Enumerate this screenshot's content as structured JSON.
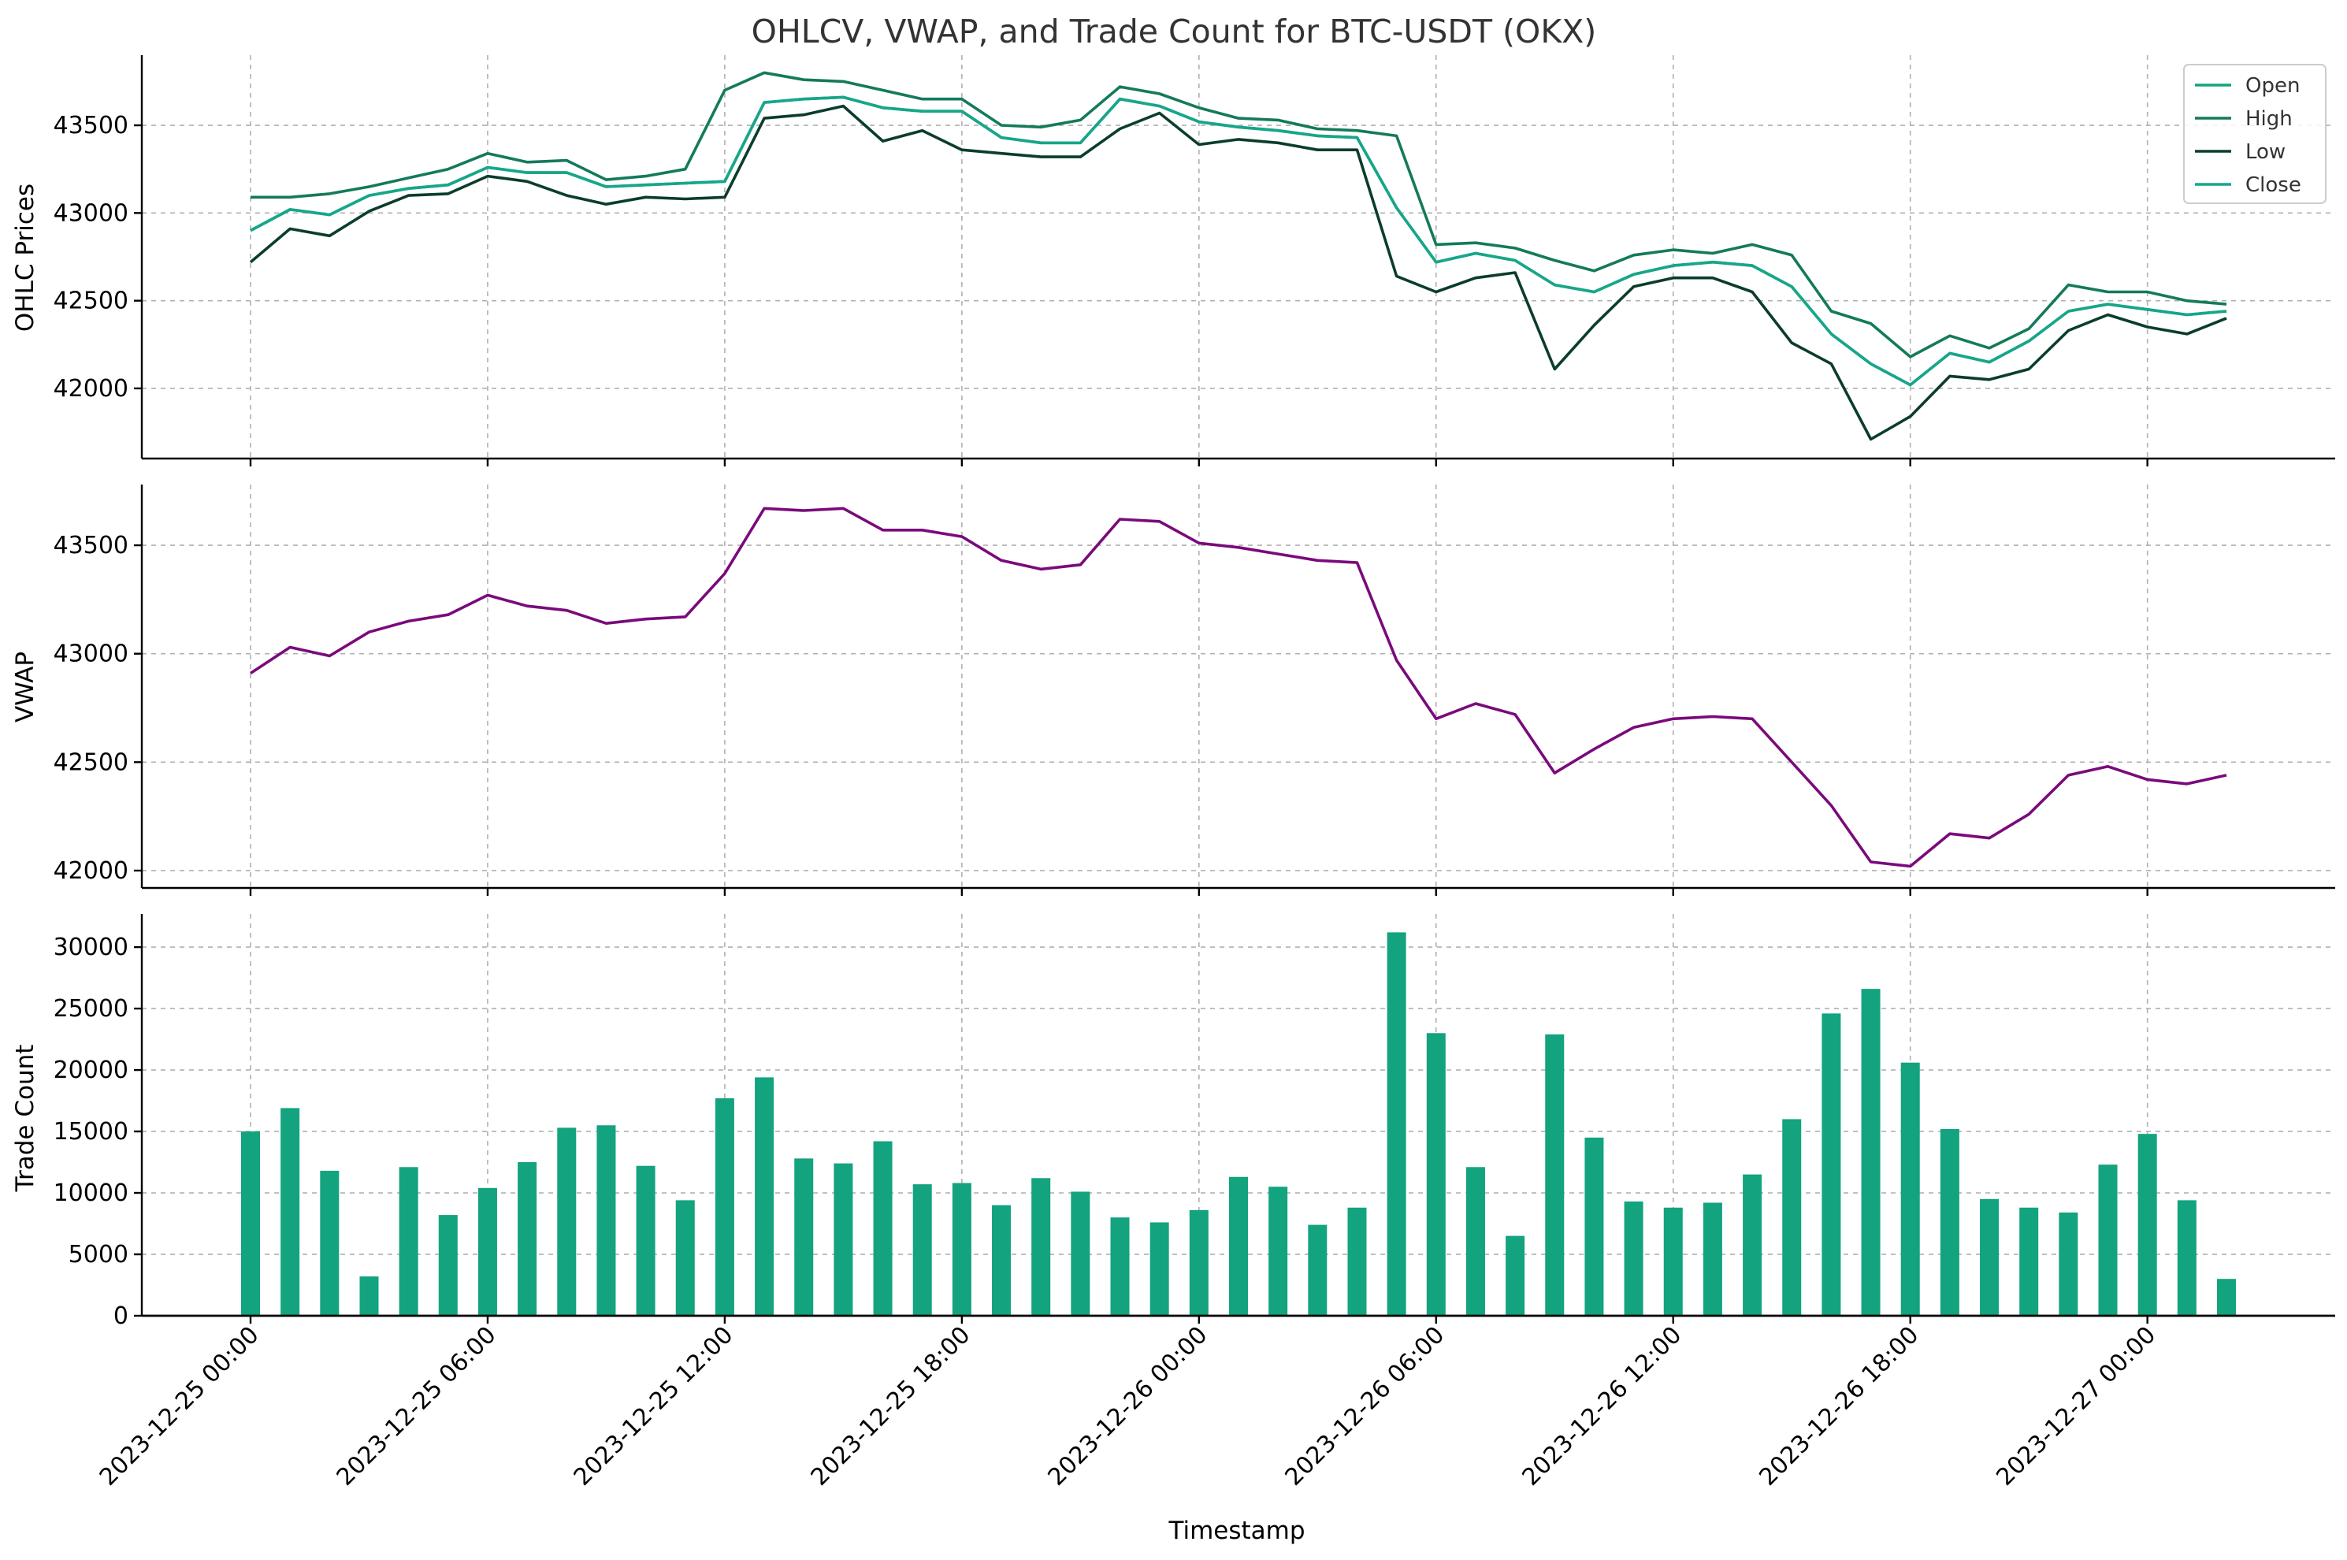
{
  "chart_data": [
    {
      "type": "line",
      "title": "OHLCV, VWAP, and Trade Count for BTC-USDT (OKX)",
      "xlabel": "",
      "ylabel": "OHLC Prices",
      "x_start": "2023-12-25 00:00",
      "x_interval_hours": 1,
      "ylim": [
        41600,
        43900
      ],
      "yticks": [
        42000,
        42500,
        43000,
        43500
      ],
      "legend": "top-right",
      "grid": true,
      "series": [
        {
          "name": "Open",
          "color": "#13a37e",
          "values": [
            42900,
            43020,
            42990,
            43100,
            43140,
            43160,
            43260,
            43230,
            43230,
            43150,
            43160,
            43170,
            43180,
            43630,
            43650,
            43660,
            43600,
            43580,
            43580,
            43430,
            43400,
            43400,
            43650,
            43610,
            43520,
            43490,
            43470,
            43440,
            43430,
            43030,
            42720,
            42770,
            42730,
            42590,
            42550,
            42650,
            42700,
            42720,
            42700,
            42580,
            42310,
            42140,
            42020,
            42200,
            42150,
            42270,
            42440,
            42480,
            42450,
            42420,
            42440
          ]
        },
        {
          "name": "High",
          "color": "#147a5c",
          "values": [
            43090,
            43090,
            43110,
            43150,
            43200,
            43250,
            43340,
            43290,
            43300,
            43190,
            43210,
            43250,
            43700,
            43800,
            43760,
            43750,
            43700,
            43650,
            43650,
            43500,
            43490,
            43530,
            43720,
            43680,
            43600,
            43540,
            43530,
            43480,
            43470,
            43440,
            42820,
            42830,
            42800,
            42730,
            42670,
            42760,
            42790,
            42770,
            42820,
            42760,
            42440,
            42370,
            42180,
            42300,
            42230,
            42340,
            42590,
            42550,
            42550,
            42500,
            42480
          ]
        },
        {
          "name": "Low",
          "color": "#0b3d2c",
          "values": [
            42720,
            42910,
            42870,
            43010,
            43100,
            43110,
            43210,
            43180,
            43100,
            43050,
            43090,
            43080,
            43090,
            43540,
            43560,
            43610,
            43410,
            43470,
            43360,
            43340,
            43320,
            43320,
            43480,
            43570,
            43390,
            43420,
            43400,
            43360,
            43360,
            42640,
            42550,
            42630,
            42660,
            42110,
            42360,
            42580,
            42630,
            42630,
            42550,
            42260,
            42140,
            41710,
            41840,
            42070,
            42050,
            42110,
            42330,
            42420,
            42350,
            42310,
            42400
          ]
        },
        {
          "name": "Close",
          "color": "#17a689",
          "values": [
            42900,
            43020,
            42990,
            43100,
            43140,
            43160,
            43260,
            43230,
            43230,
            43150,
            43160,
            43170,
            43180,
            43630,
            43650,
            43660,
            43600,
            43580,
            43580,
            43430,
            43400,
            43400,
            43650,
            43610,
            43520,
            43490,
            43470,
            43440,
            43430,
            43030,
            42720,
            42770,
            42730,
            42590,
            42550,
            42650,
            42700,
            42720,
            42700,
            42580,
            42310,
            42140,
            42020,
            42200,
            42150,
            42270,
            42440,
            42480,
            42450,
            42420,
            42440
          ]
        }
      ]
    },
    {
      "type": "line",
      "title": "",
      "xlabel": "",
      "ylabel": "VWAP",
      "x_start": "2023-12-25 00:00",
      "x_interval_hours": 1,
      "ylim": [
        41920,
        43780
      ],
      "yticks": [
        42000,
        42500,
        43000,
        43500
      ],
      "grid": true,
      "series": [
        {
          "name": "",
          "color": "#7a0a7c",
          "values": [
            42910,
            43030,
            42990,
            43100,
            43150,
            43180,
            43270,
            43220,
            43200,
            43140,
            43160,
            43170,
            43370,
            43670,
            43660,
            43670,
            43570,
            43570,
            43540,
            43430,
            43390,
            43410,
            43620,
            43610,
            43510,
            43490,
            43460,
            43430,
            43420,
            42970,
            42700,
            42770,
            42720,
            42450,
            42560,
            42660,
            42700,
            42710,
            42700,
            42500,
            42300,
            42040,
            42020,
            42170,
            42150,
            42260,
            42440,
            42480,
            42420,
            42400,
            42440
          ]
        }
      ]
    },
    {
      "type": "bar",
      "title": "",
      "xlabel": "Timestamp",
      "ylabel": "Trade Count",
      "x_start": "2023-12-25 00:00",
      "x_interval_hours": 1,
      "ylim": [
        0,
        32700
      ],
      "yticks": [
        0,
        5000,
        10000,
        15000,
        20000,
        25000,
        30000
      ],
      "grid": true,
      "color": "#13a37e",
      "values": [
        15000,
        16900,
        11800,
        3200,
        12100,
        8200,
        10400,
        12500,
        15300,
        15500,
        12200,
        9400,
        17700,
        19400,
        12800,
        12400,
        14200,
        10700,
        10800,
        9000,
        11200,
        10100,
        8000,
        7600,
        8600,
        11300,
        10500,
        7400,
        8800,
        31200,
        23000,
        12100,
        6500,
        22900,
        14500,
        9300,
        8800,
        9200,
        11500,
        16000,
        24600,
        26600,
        20600,
        15200,
        9500,
        8800,
        8400,
        12300,
        14800,
        9400,
        3000
      ],
      "xticks": [
        "2023-12-25 00:00",
        "2023-12-25 06:00",
        "2023-12-25 12:00",
        "2023-12-25 18:00",
        "2023-12-26 00:00",
        "2023-12-26 06:00",
        "2023-12-26 12:00",
        "2023-12-26 18:00",
        "2023-12-27 00:00"
      ]
    }
  ]
}
